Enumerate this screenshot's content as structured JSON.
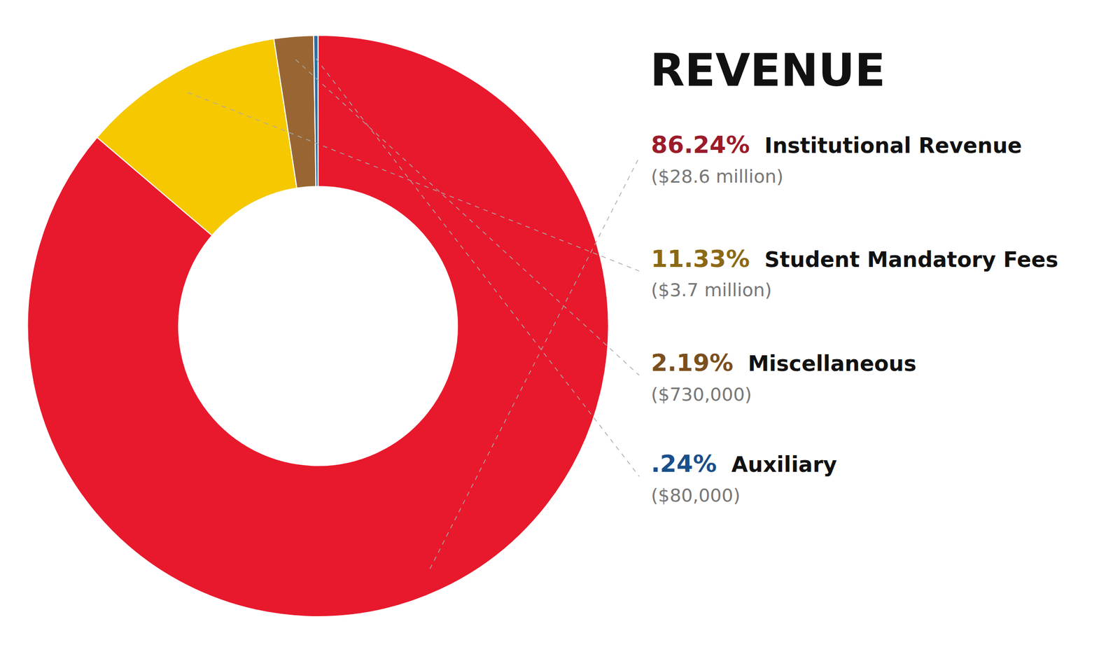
{
  "chart_data": {
    "type": "pie",
    "title": "REVENUE",
    "categories": [
      "Institutional Revenue",
      "Student Mandatory Fees",
      "Miscellaneous",
      "Auxiliary"
    ],
    "values": [
      86.24,
      11.33,
      2.19,
      0.24
    ],
    "value_labels": [
      "86.24%",
      "11.33%",
      "2.19%",
      ".24%"
    ],
    "colors": [
      "#e8192c",
      "#f5c800",
      "#996633",
      "#2e6da4"
    ],
    "annotations": [
      "($28.6 million)",
      "($3.7 million)",
      "($730,000)",
      "($80,000)"
    ]
  }
}
